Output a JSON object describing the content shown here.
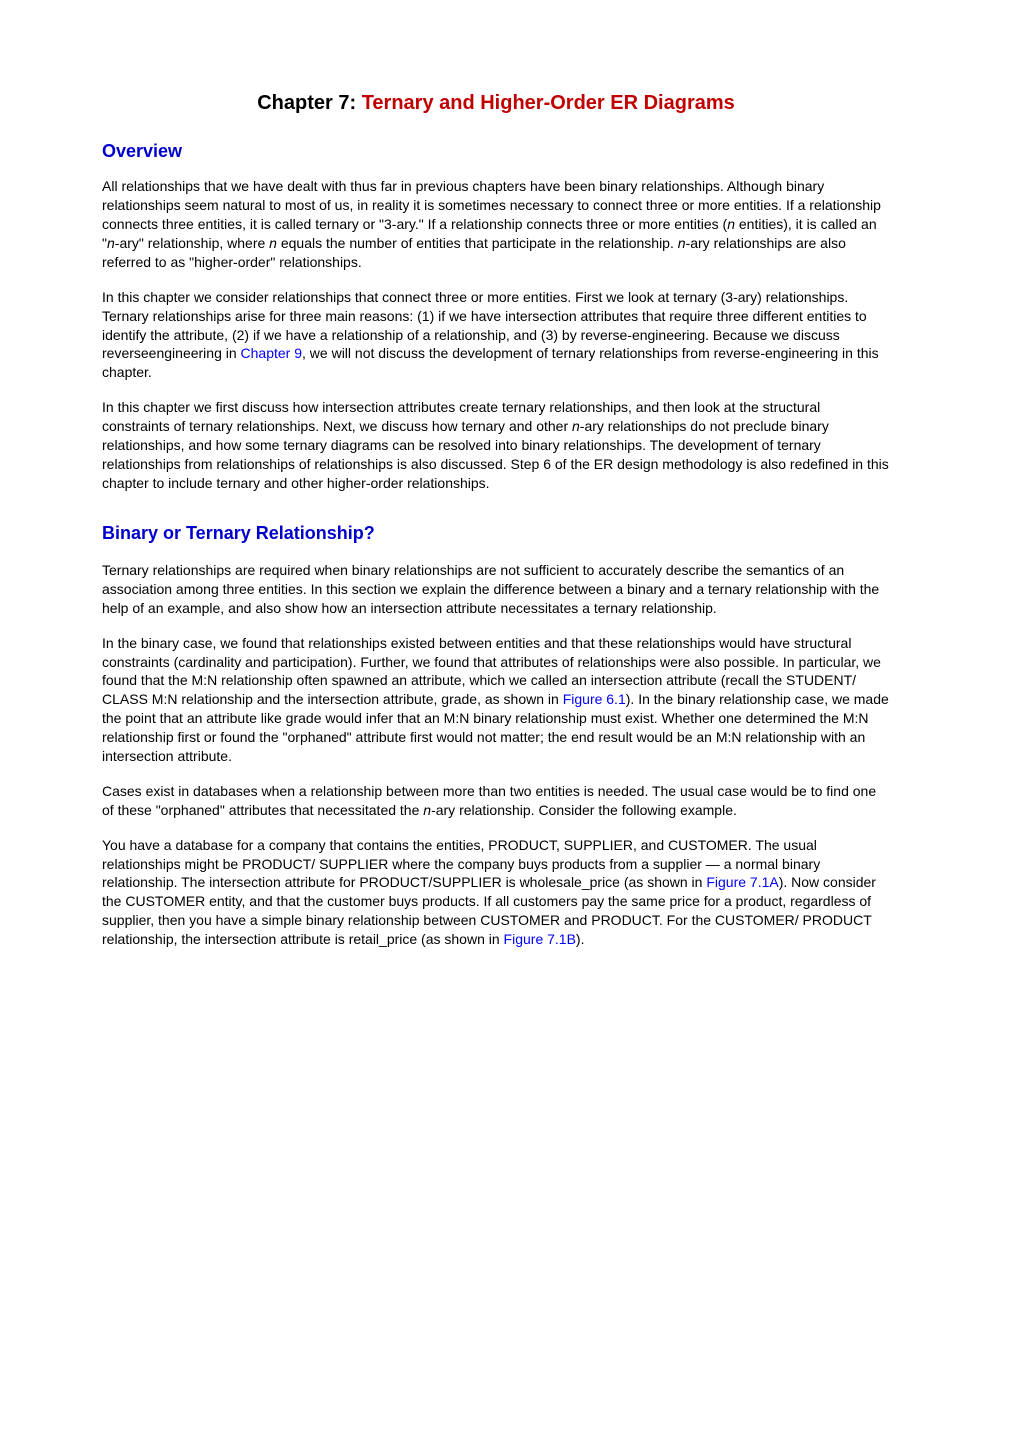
{
  "chapter_title_prefix": "Chapter 7: ",
  "chapter_title_main": "Ternary and Higher-Order ER Diagrams",
  "section1_heading": "Overview",
  "section1_p1_a": "All relationships that we have dealt with thus far in previous chapters have been binary relationships. Although binary relationships seem natural to most of us, in reality it is sometimes necessary to connect three or more entities. If a relationship connects three entities, it is called ternary or \"3-ary.\" If a relationship connects three or more entities (",
  "section1_p1_n1": "n",
  "section1_p1_b": " entities), it is called an \"",
  "section1_p1_n2": "n",
  "section1_p1_c": "-ary\" relationship, where ",
  "section1_p1_n3": "n",
  "section1_p1_d": " equals the number of entities that participate in the relationship. ",
  "section1_p1_n4": "n",
  "section1_p1_e": "-ary relationships are also referred to as \"higher-order\" relationships.",
  "section1_p2_a": "In this chapter we consider relationships that connect three or more entities. First we look at ternary (3-ary) relationships. Ternary relationships arise for three main reasons: (1) if we have intersection attributes that require three different entities to identify the attribute, (2) if we have a relationship of a relationship, and (3) by reverse-engineering. Because we discuss reverseengineering in ",
  "section1_p2_link": "Chapter 9",
  "section1_p2_b": ", we will not discuss the development of ternary relationships from reverse-engineering in this chapter.",
  "section1_p3_a": "In this chapter we first discuss how intersection attributes create ternary relationships, and then look at the structural constraints of ternary relationships. Next, we discuss how ternary and other ",
  "section1_p3_n": "n",
  "section1_p3_b": "-ary relationships do not preclude binary relationships, and how some ternary diagrams can be resolved into binary relationships. The development of ternary relationships from relationships of relationships is also discussed. Step 6 of the ER design methodology is also redefined in this chapter to include ternary and other higher-order relationships.",
  "section2_heading": "Binary or Ternary Relationship?",
  "section2_p1": "Ternary relationships are required when binary relationships are not sufficient to accurately describe the semantics of an association among three entities. In this section we explain the difference between a binary and a ternary relationship with the help of an example, and also show how an intersection attribute necessitates a ternary relationship.",
  "section2_p2_a": "In the binary case, we found that relationships existed between entities and that these relationships would have structural constraints (cardinality and participation). Further, we found that attributes of relationships were also possible. In particular, we found that the M:N relationship often spawned an attribute, which we called an intersection attribute (recall the STUDENT/ CLASS M:N relationship and the intersection attribute, grade, as shown in ",
  "section2_p2_link": "Figure 6.1",
  "section2_p2_b": "). In the binary relationship case, we made the point that an attribute like grade would infer that an M:N binary relationship must exist. Whether one determined the M:N relationship first or found the \"orphaned\" attribute first would not matter; the end result would be an M:N relationship with an intersection attribute.",
  "section2_p3_a": "Cases exist in databases when a relationship between more than two entities is needed. The usual case would be to find one of these \"orphaned\" attributes that necessitated the ",
  "section2_p3_n": "n",
  "section2_p3_b": "-ary relationship. Consider the following example.",
  "section2_p4_a": "You have a database for a company that contains the entities, PRODUCT, SUPPLIER, and CUSTOMER. The usual relationships might be PRODUCT/ SUPPLIER where the company buys products from a supplier — a normal binary relationship. The intersection attribute for PRODUCT/SUPPLIER is wholesale_price (as shown in ",
  "section2_p4_link1": "Figure 7.1A",
  "section2_p4_b": "). Now consider the CUSTOMER entity, and that the customer buys products. If all customers pay the same price for a product, regardless of supplier, then you have a simple binary relationship between CUSTOMER and PRODUCT. For the CUSTOMER/ PRODUCT relationship, the intersection attribute is retail_price (as shown in ",
  "section2_p4_link2": "Figure 7.1B",
  "section2_p4_c": ")."
}
